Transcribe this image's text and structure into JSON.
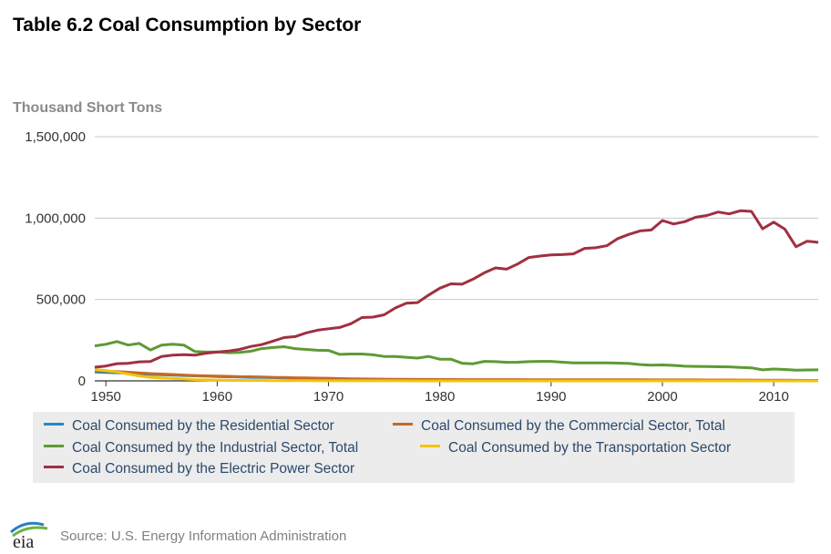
{
  "header": {
    "title": "Table 6.2 Coal Consumption by Sector",
    "unit_label": "Thousand Short Tons"
  },
  "footer": {
    "source": "Source: U.S. Energy Information Administration",
    "logo_text": "eia"
  },
  "chart_data": {
    "type": "line",
    "ylabel": "Thousand Short Tons",
    "xlim": [
      1949,
      2014
    ],
    "ylim": [
      0,
      1500000
    ],
    "x_ticks": [
      1950,
      1960,
      1970,
      1980,
      1990,
      2000,
      2010
    ],
    "y_ticks": [
      0,
      500000,
      1000000,
      1500000
    ],
    "y_tick_labels": [
      "0",
      "500,000",
      "1,000,000",
      "1,500,000"
    ],
    "grid": "horizontal",
    "legend_position": "bottom",
    "series": [
      {
        "name": "Coal Consumed by the Residential Sector",
        "color": "#1f8ac8",
        "x": [
          1949,
          1950,
          1951,
          1952,
          1953,
          1954,
          1955,
          1956,
          1957,
          1958,
          1959,
          1960,
          1961,
          1962,
          1963,
          1964,
          1965,
          1966,
          1967,
          1968,
          1969,
          1970,
          1971,
          1972,
          1973,
          1974,
          1975,
          1976,
          1977,
          1978,
          1979,
          1980,
          1981,
          1982,
          1983,
          1984,
          1985,
          1986,
          1987,
          1988,
          1989,
          1990,
          1991,
          1992,
          1993,
          1994,
          1995,
          1996,
          1997,
          1998,
          1999,
          2000,
          2001,
          2002,
          2003,
          2004,
          2005,
          2006,
          2007,
          2008,
          2009,
          2010,
          2011,
          2012,
          2013,
          2014
        ],
        "values": [
          55000,
          52000,
          50000,
          47000,
          44000,
          40000,
          38000,
          36000,
          33000,
          31000,
          29000,
          27000,
          25000,
          24000,
          22000,
          21000,
          20000,
          18000,
          16000,
          15000,
          13000,
          12000,
          10000,
          9000,
          8000,
          7500,
          7000,
          6800,
          6500,
          6200,
          6000,
          5800,
          5600,
          5500,
          5400,
          5300,
          5200,
          5100,
          5000,
          4900,
          4800,
          4700,
          4600,
          4500,
          4400,
          4300,
          4200,
          4000,
          3800,
          3600,
          3400,
          3200,
          3000,
          2900,
          2800,
          2600,
          2400,
          2200,
          2000,
          1800,
          1600,
          1400,
          1200,
          1000,
          900,
          800
        ]
      },
      {
        "name": "Coal Consumed by the Commercial Sector, Total",
        "color": "#c56a28",
        "x": [
          1949,
          1950,
          1951,
          1952,
          1953,
          1954,
          1955,
          1956,
          1957,
          1958,
          1959,
          1960,
          1961,
          1962,
          1963,
          1964,
          1965,
          1966,
          1967,
          1968,
          1969,
          1970,
          1971,
          1972,
          1973,
          1974,
          1975,
          1976,
          1977,
          1978,
          1979,
          1980,
          1981,
          1982,
          1983,
          1984,
          1985,
          1986,
          1987,
          1988,
          1989,
          1990,
          1991,
          1992,
          1993,
          1994,
          1995,
          1996,
          1997,
          1998,
          1999,
          2000,
          2001,
          2002,
          2003,
          2004,
          2005,
          2006,
          2007,
          2008,
          2009,
          2010,
          2011,
          2012,
          2013,
          2014
        ],
        "values": [
          63000,
          60000,
          57000,
          53000,
          49000,
          45000,
          42000,
          39000,
          36000,
          33000,
          31000,
          29000,
          28000,
          26000,
          25000,
          24000,
          22000,
          21000,
          19000,
          18000,
          17000,
          16000,
          14000,
          13000,
          12000,
          11000,
          10500,
          10000,
          9500,
          9000,
          8700,
          8500,
          8300,
          8100,
          8000,
          7900,
          7800,
          7700,
          7600,
          7500,
          7400,
          7300,
          7200,
          7100,
          7000,
          6900,
          6800,
          6700,
          6600,
          6500,
          6400,
          6300,
          6200,
          6100,
          6000,
          5800,
          5600,
          5400,
          5200,
          5000,
          4600,
          4200,
          3800,
          3400,
          3000,
          2800
        ]
      },
      {
        "name": "Coal Consumed by the Industrial Sector, Total",
        "color": "#5e9a35",
        "x": [
          1949,
          1950,
          1951,
          1952,
          1953,
          1954,
          1955,
          1956,
          1957,
          1958,
          1959,
          1960,
          1961,
          1962,
          1963,
          1964,
          1965,
          1966,
          1967,
          1968,
          1969,
          1970,
          1971,
          1972,
          1973,
          1974,
          1975,
          1976,
          1977,
          1978,
          1979,
          1980,
          1981,
          1982,
          1983,
          1984,
          1985,
          1986,
          1987,
          1988,
          1989,
          1990,
          1991,
          1992,
          1993,
          1994,
          1995,
          1996,
          1997,
          1998,
          1999,
          2000,
          2001,
          2002,
          2003,
          2004,
          2005,
          2006,
          2007,
          2008,
          2009,
          2010,
          2011,
          2012,
          2013,
          2014
        ],
        "values": [
          215000,
          225000,
          242000,
          220000,
          230000,
          190000,
          220000,
          225000,
          220000,
          180000,
          177000,
          178000,
          173000,
          175000,
          182000,
          198000,
          205000,
          210000,
          198000,
          193000,
          188000,
          187000,
          163000,
          165000,
          165000,
          160000,
          150000,
          150000,
          145000,
          140000,
          150000,
          133000,
          133000,
          108000,
          105000,
          120000,
          118000,
          114000,
          115000,
          118000,
          120000,
          120000,
          115000,
          110000,
          110000,
          110000,
          110000,
          109000,
          107000,
          100000,
          97000,
          98000,
          95000,
          90000,
          89000,
          88000,
          87000,
          86000,
          83000,
          80000,
          68000,
          73000,
          70000,
          66000,
          67000,
          68000
        ]
      },
      {
        "name": "Coal Consumed by the Transportation Sector",
        "color": "#f2c40e",
        "x": [
          1949,
          1950,
          1951,
          1952,
          1953,
          1954,
          1955,
          1956,
          1957,
          1958,
          1959,
          1960,
          1961,
          1962,
          1963,
          1964,
          1965,
          1966,
          1967,
          1968,
          1969,
          1970,
          1971,
          1972,
          1973,
          1974,
          1975,
          1976,
          1977,
          1978,
          1979,
          1980,
          1981,
          1982,
          1983,
          1984,
          1985,
          1986,
          1987,
          1988,
          1989,
          1990,
          1991,
          1992,
          1993,
          1994,
          1995,
          1996,
          1997,
          1998,
          1999,
          2000,
          2001,
          2002,
          2003,
          2004,
          2005,
          2006,
          2007,
          2008,
          2009,
          2010,
          2011,
          2012,
          2013,
          2014
        ],
        "values": [
          70000,
          63000,
          55000,
          42000,
          30000,
          22000,
          18000,
          15000,
          11000,
          8000,
          6000,
          5000,
          4000,
          3000,
          2500,
          2000,
          1700,
          1500,
          1200,
          1000,
          800,
          600,
          500,
          400,
          300,
          300,
          300,
          300,
          200,
          200,
          200,
          200,
          200,
          200,
          200,
          200,
          200,
          200,
          200,
          200,
          200,
          200,
          200,
          200,
          200,
          200,
          200,
          200,
          200,
          200,
          200,
          200,
          200,
          200,
          200,
          200,
          200,
          200,
          200,
          200,
          200,
          200,
          200,
          200,
          200,
          200
        ]
      },
      {
        "name": "Coal Consumed by the Electric Power Sector",
        "color": "#a03040",
        "x": [
          1949,
          1950,
          1951,
          1952,
          1953,
          1954,
          1955,
          1956,
          1957,
          1958,
          1959,
          1960,
          1961,
          1962,
          1963,
          1964,
          1965,
          1966,
          1967,
          1968,
          1969,
          1970,
          1971,
          1972,
          1973,
          1974,
          1975,
          1976,
          1977,
          1978,
          1979,
          1980,
          1981,
          1982,
          1983,
          1984,
          1985,
          1986,
          1987,
          1988,
          1989,
          1990,
          1991,
          1992,
          1993,
          1994,
          1995,
          1996,
          1997,
          1998,
          1999,
          2000,
          2001,
          2002,
          2003,
          2004,
          2005,
          2006,
          2007,
          2008,
          2009,
          2010,
          2011,
          2012,
          2013,
          2014
        ],
        "values": [
          84000,
          91000,
          106000,
          108000,
          117000,
          119000,
          150000,
          158000,
          161000,
          158000,
          170000,
          177000,
          183000,
          193000,
          211000,
          223000,
          244000,
          266000,
          272000,
          295000,
          311000,
          320000,
          328000,
          351000,
          389000,
          392000,
          406000,
          448000,
          477000,
          481000,
          527000,
          569000,
          596000,
          594000,
          625000,
          664000,
          694000,
          686000,
          718000,
          758000,
          767000,
          774000,
          776000,
          780000,
          814000,
          818000,
          830000,
          874000,
          900000,
          921000,
          927000,
          985000,
          964000,
          978000,
          1005000,
          1016000,
          1037000,
          1026000,
          1045000,
          1041000,
          934000,
          975000,
          932000,
          824000,
          858000,
          851000
        ]
      }
    ]
  }
}
